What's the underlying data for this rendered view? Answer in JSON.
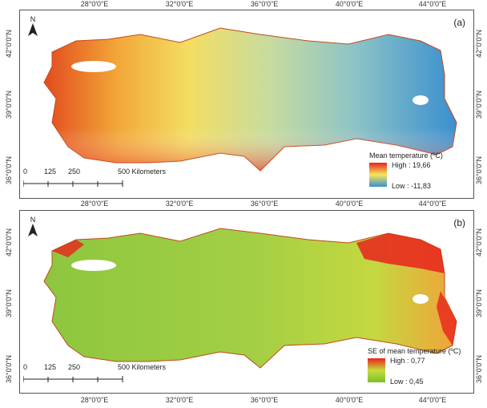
{
  "axis": {
    "lon_labels": [
      "28°0'0\"E",
      "32°0'0\"E",
      "36°0'0\"E",
      "40°0'0\"E",
      "44°0'0\"E"
    ],
    "lat_labels": [
      "42°0'0\"N",
      "39°0'0\"N",
      "36°0'0\"N"
    ]
  },
  "north_label": "N",
  "scale": {
    "ticks": [
      "0",
      "125",
      "250",
      "500 Kilometers"
    ]
  },
  "panel_a": {
    "label": "(a)",
    "legend_title": "Mean temperature (ºC)",
    "legend_high": "High : 19,66",
    "legend_low": "Low : -11,83",
    "color_high": "#e8231c",
    "color_mid": "#f6e65a",
    "color_low": "#3a8fd0"
  },
  "panel_b": {
    "label": "(b)",
    "legend_title": "SE of mean temperature (ºC)",
    "legend_high": "High : 0,77",
    "legend_low": "Low : 0,45",
    "color_high": "#e8231c",
    "color_mid": "#c6dc3a",
    "color_low": "#7bbf2e"
  }
}
